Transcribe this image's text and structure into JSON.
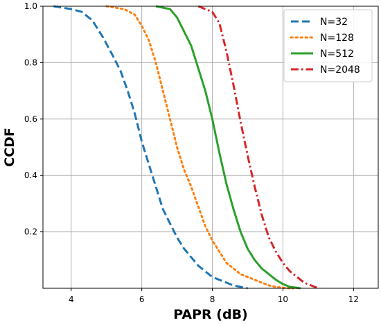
{
  "chart_data": {
    "type": "line",
    "xlabel": "PAPR (dB)",
    "ylabel": "CCDF",
    "xlim": [
      3.2,
      12.7
    ],
    "ylim": [
      0,
      1.0
    ],
    "xticks": [
      "4",
      "6",
      "8",
      "10",
      "12"
    ],
    "yticks": [
      "0.2",
      "0.4",
      "0.6",
      "0.8",
      "1.0"
    ],
    "grid": true,
    "legend_position": "top-right",
    "series": [
      {
        "name": "N=32",
        "color": "#1f77b4",
        "dash": "dashed",
        "x": [
          3.5,
          4.0,
          4.3,
          4.6,
          4.9,
          5.2,
          5.4,
          5.6,
          5.8,
          6.0,
          6.2,
          6.4,
          6.6,
          6.8,
          7.0,
          7.2,
          7.4,
          7.6,
          7.8,
          8.0,
          8.2,
          8.4,
          8.6,
          8.8,
          9.0
        ],
        "y": [
          1.0,
          0.99,
          0.98,
          0.95,
          0.89,
          0.82,
          0.77,
          0.7,
          0.62,
          0.52,
          0.44,
          0.36,
          0.28,
          0.23,
          0.18,
          0.14,
          0.11,
          0.08,
          0.06,
          0.04,
          0.03,
          0.02,
          0.01,
          0.005,
          0.0
        ]
      },
      {
        "name": "N=128",
        "color": "#ff7f0e",
        "dash": "dotted",
        "x": [
          5.0,
          5.5,
          5.8,
          6.0,
          6.2,
          6.4,
          6.6,
          6.8,
          7.0,
          7.2,
          7.4,
          7.6,
          7.8,
          8.0,
          8.2,
          8.4,
          8.6,
          8.8,
          9.0,
          9.2,
          9.4,
          9.6,
          9.8,
          10.0,
          10.3
        ],
        "y": [
          1.0,
          0.99,
          0.97,
          0.93,
          0.88,
          0.8,
          0.7,
          0.6,
          0.5,
          0.42,
          0.36,
          0.29,
          0.22,
          0.17,
          0.13,
          0.09,
          0.07,
          0.05,
          0.04,
          0.03,
          0.02,
          0.01,
          0.005,
          0.002,
          0.0
        ]
      },
      {
        "name": "N=512",
        "color": "#2ca02c",
        "dash": "solid",
        "x": [
          6.4,
          6.8,
          7.0,
          7.2,
          7.4,
          7.6,
          7.8,
          8.0,
          8.2,
          8.4,
          8.6,
          8.8,
          9.0,
          9.2,
          9.4,
          9.6,
          9.8,
          10.0,
          10.2,
          10.5
        ],
        "y": [
          1.0,
          0.99,
          0.96,
          0.91,
          0.86,
          0.78,
          0.7,
          0.6,
          0.48,
          0.37,
          0.28,
          0.2,
          0.14,
          0.1,
          0.07,
          0.05,
          0.03,
          0.015,
          0.005,
          0.0
        ]
      },
      {
        "name": "N=2048",
        "color": "#d62728",
        "dash": "dashdot",
        "x": [
          7.6,
          8.0,
          8.2,
          8.4,
          8.6,
          8.8,
          9.0,
          9.2,
          9.4,
          9.6,
          9.8,
          10.0,
          10.2,
          10.4,
          10.6,
          10.8,
          11.0
        ],
        "y": [
          1.0,
          0.98,
          0.94,
          0.84,
          0.72,
          0.59,
          0.47,
          0.36,
          0.26,
          0.18,
          0.13,
          0.09,
          0.06,
          0.04,
          0.02,
          0.01,
          0.0
        ]
      }
    ]
  }
}
